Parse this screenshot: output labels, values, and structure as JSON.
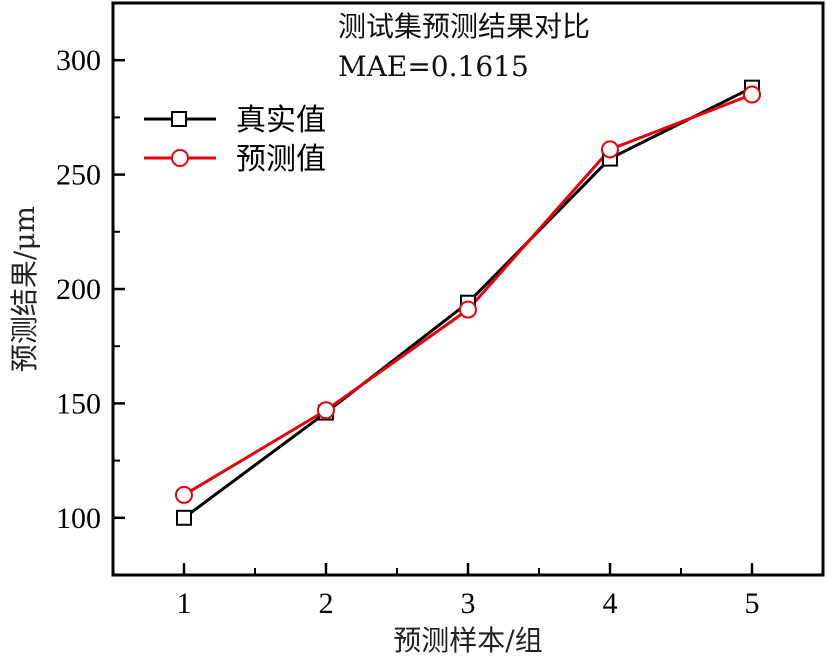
{
  "chart_data": {
    "type": "line",
    "title": "",
    "annotations": [
      "测试集预测结果对比",
      "MAE=0.1615"
    ],
    "xlabel": "预测样本/组",
    "ylabel": "预测结果/μm",
    "x": [
      1,
      2,
      3,
      4,
      5
    ],
    "xlim": [
      0.5,
      5.5
    ],
    "ylim": [
      75,
      325
    ],
    "xticks": [
      1,
      2,
      3,
      4,
      5
    ],
    "yticks": [
      100,
      150,
      200,
      250,
      300
    ],
    "grid": false,
    "legend_position": "top-left",
    "series": [
      {
        "name": "真实值",
        "values": [
          100,
          146,
          194,
          257,
          288
        ],
        "color": "#000000",
        "marker": "square"
      },
      {
        "name": "预测值",
        "values": [
          110,
          147,
          191,
          261,
          285
        ],
        "color": "#e8000b",
        "marker": "circle"
      }
    ]
  }
}
